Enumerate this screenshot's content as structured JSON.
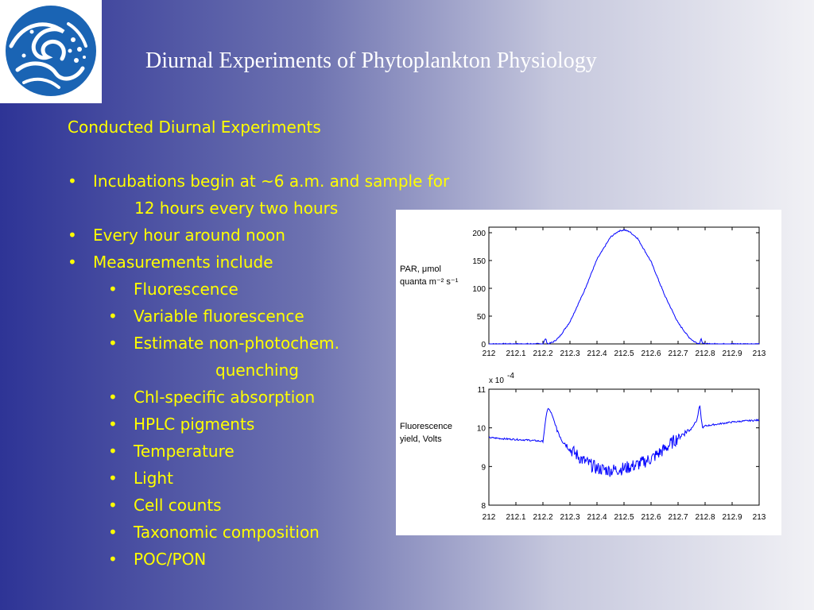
{
  "title": "Diurnal Experiments of Phytoplankton Physiology",
  "logo": {
    "icon": "wave-emblem-icon",
    "colors": {
      "blue": "#1a64b4",
      "white": "#ffffff"
    }
  },
  "content": {
    "heading": "Conducted Diurnal Experiments",
    "bullet_char": "•",
    "items": [
      {
        "level": 1,
        "lines": [
          "Incubations begin at ~6 a.m. and sample for",
          "12 hours every two hours"
        ]
      },
      {
        "level": 1,
        "lines": [
          "Every hour around noon"
        ]
      },
      {
        "level": 1,
        "lines": [
          "Measurements include"
        ]
      },
      {
        "level": 2,
        "lines": [
          "Fluorescence"
        ]
      },
      {
        "level": 2,
        "lines": [
          "Variable fluorescence"
        ]
      },
      {
        "level": 2,
        "lines": [
          "Estimate non-photochem.",
          "quenching"
        ]
      },
      {
        "level": 2,
        "lines": [
          "Chl-specific absorption"
        ]
      },
      {
        "level": 2,
        "lines": [
          "HPLC pigments"
        ]
      },
      {
        "level": 2,
        "lines": [
          "Temperature"
        ]
      },
      {
        "level": 2,
        "lines": [
          "Light"
        ]
      },
      {
        "level": 2,
        "lines": [
          "Cell counts"
        ]
      },
      {
        "level": 2,
        "lines": [
          "Taxonomic composition"
        ]
      },
      {
        "level": 2,
        "lines": [
          "POC/PON"
        ]
      }
    ],
    "text_color": "#ffff00"
  },
  "chart_data": [
    {
      "type": "line",
      "ylabel": "PAR, μmol quanta m⁻² s⁻¹",
      "ylabel_lines": [
        "PAR, μmol",
        "quanta m⁻² s⁻¹"
      ],
      "xlim": [
        212,
        213
      ],
      "ylim": [
        0,
        210
      ],
      "xticks": [
        "212",
        "212.1",
        "212.2",
        "212.3",
        "212.4",
        "212.5",
        "212.6",
        "212.7",
        "212.8",
        "212.9",
        "213"
      ],
      "yticks": [
        "0",
        "50",
        "100",
        "150",
        "200"
      ],
      "ytick_values": [
        0,
        50,
        100,
        150,
        200
      ],
      "line_color": "#0000ff",
      "series": [
        {
          "x": [
            212.0,
            212.2,
            212.21,
            212.215,
            212.22,
            212.24,
            212.26,
            212.3,
            212.35,
            212.4,
            212.45,
            212.48,
            212.5,
            212.52,
            212.55,
            212.6,
            212.65,
            212.7,
            212.74,
            212.76,
            212.78,
            212.785,
            212.79,
            212.8,
            213.0
          ],
          "y": [
            0,
            0,
            10,
            2,
            0,
            4,
            12,
            40,
            92,
            152,
            192,
            203,
            205,
            202,
            190,
            148,
            88,
            38,
            12,
            4,
            0,
            12,
            1,
            0,
            0
          ]
        }
      ]
    },
    {
      "type": "line",
      "ylabel": "Fluorescence yield, Volts",
      "ylabel_lines": [
        "Fluorescence",
        "yield, Volts"
      ],
      "multiplier_label": "x 10",
      "multiplier_exp": "-4",
      "xlim": [
        212,
        213
      ],
      "ylim": [
        8,
        11
      ],
      "xticks": [
        "212",
        "212.1",
        "212.2",
        "212.3",
        "212.4",
        "212.5",
        "212.6",
        "212.7",
        "212.8",
        "212.9",
        "213"
      ],
      "yticks": [
        "8",
        "9",
        "10",
        "11"
      ],
      "ytick_values": [
        8,
        9,
        10,
        11
      ],
      "line_color": "#0000ff",
      "series": [
        {
          "x": [
            212.0,
            212.05,
            212.1,
            212.15,
            212.2,
            212.215,
            212.22,
            212.23,
            212.24,
            212.25,
            212.27,
            212.3,
            212.35,
            212.4,
            212.45,
            212.5,
            212.55,
            212.6,
            212.65,
            212.7,
            212.75,
            212.77,
            212.78,
            212.79,
            212.8,
            212.85,
            212.9,
            212.95,
            213.0
          ],
          "y": [
            9.75,
            9.72,
            9.7,
            9.68,
            9.65,
            10.45,
            10.5,
            10.4,
            10.2,
            10.0,
            9.7,
            9.45,
            9.15,
            8.95,
            8.9,
            8.95,
            9.05,
            9.2,
            9.45,
            9.75,
            10.0,
            10.2,
            10.6,
            10.0,
            10.05,
            10.1,
            10.15,
            10.18,
            10.2
          ]
        }
      ]
    }
  ]
}
